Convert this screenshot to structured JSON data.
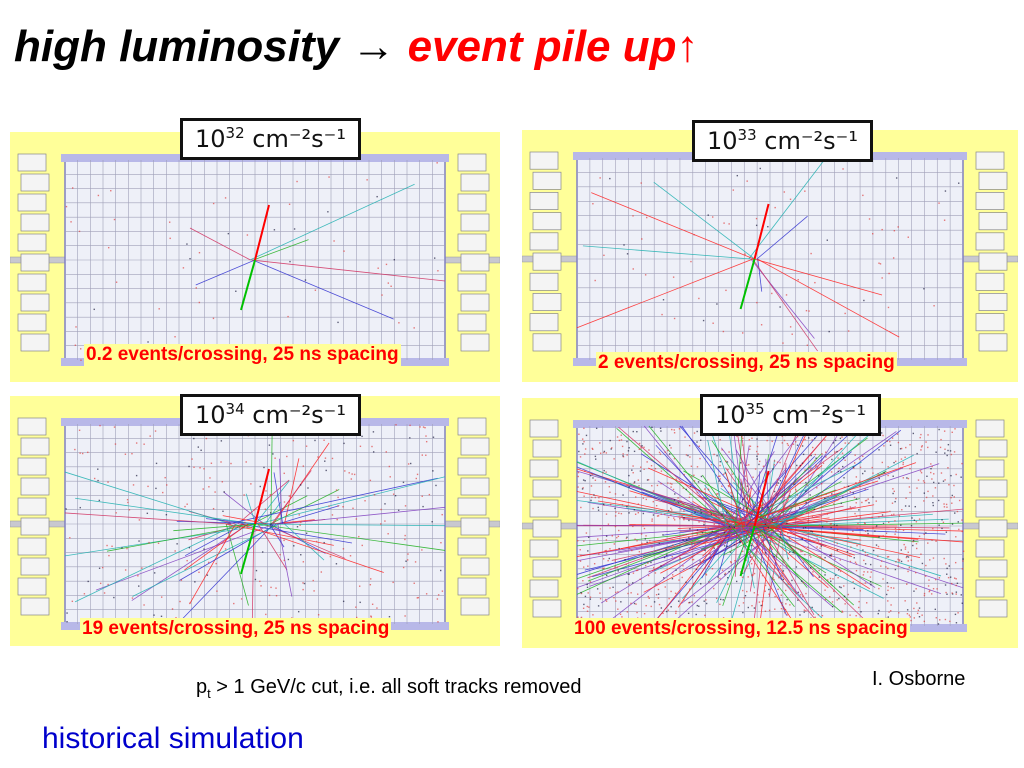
{
  "title": {
    "part1": "high luminosity → ",
    "part2": "event pile up↑"
  },
  "panels": [
    {
      "exponent": "32",
      "unit": "cm⁻²s⁻¹",
      "caption": "0.2 events/crossing, 25 ns spacing",
      "events_per_crossing": 0.2
    },
    {
      "exponent": "33",
      "unit": "cm⁻²s⁻¹",
      "caption": "2 events/crossing, 25 ns spacing",
      "events_per_crossing": 2
    },
    {
      "exponent": "34",
      "unit": "cm⁻²s⁻¹",
      "caption": "19 events/crossing, 25 ns spacing",
      "events_per_crossing": 19
    },
    {
      "exponent": "35",
      "unit": "cm⁻²s⁻¹",
      "caption": "100 events/crossing, 12.5 ns spacing",
      "events_per_crossing": 100
    }
  ],
  "note": {
    "p": "p",
    "sub": "t",
    "rest": " > 1 GeV/c cut, i.e. all soft tracks removed"
  },
  "credit": "I. Osborne",
  "footer": "historical simulation",
  "colors": {
    "title_accent": "#ff0000",
    "caption": "#ff0000",
    "footer": "#0000cc",
    "panel_background": "#ffff99"
  }
}
